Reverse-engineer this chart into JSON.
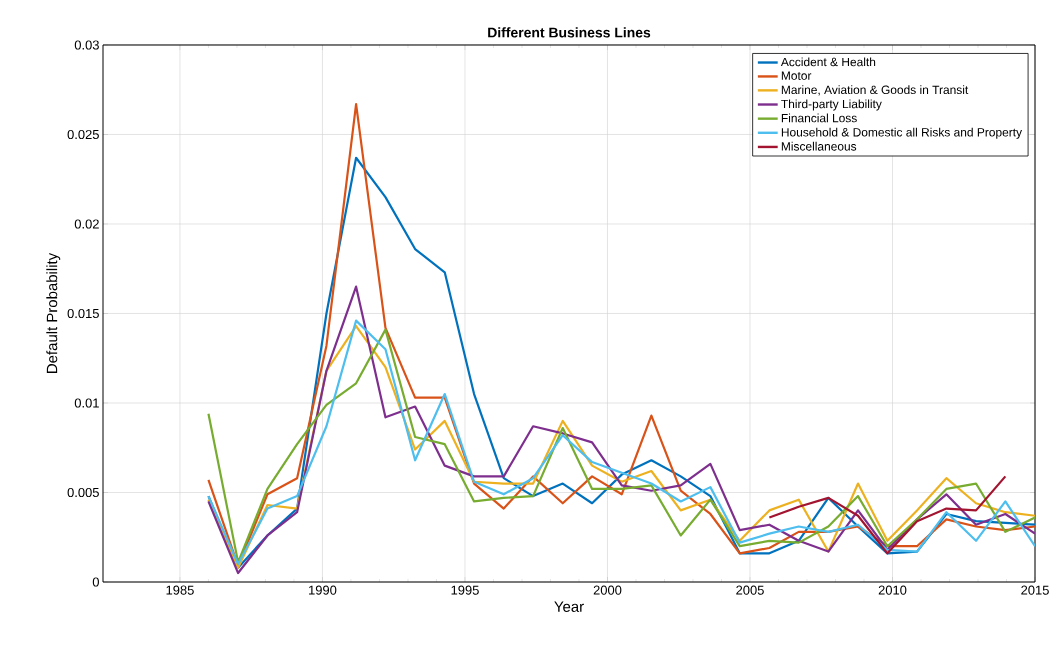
{
  "chart_data": {
    "type": "line",
    "title": "Different Business Lines",
    "xlabel": "Year",
    "ylabel": "Default Probability",
    "x": [
      1986,
      1987.04,
      1988.07,
      1989.11,
      1990.14,
      1991.18,
      1992.21,
      1993.25,
      1994.29,
      1995.32,
      1996.36,
      1997.39,
      1998.43,
      1999.46,
      2000.5,
      2001.54,
      2002.57,
      2003.61,
      2004.64,
      2005.68,
      2006.71,
      2007.75,
      2008.79,
      2009.82,
      2010.86,
      2011.89,
      2012.93,
      2013.96,
      2015
    ],
    "series": [
      {
        "name": "Accident & Health",
        "color": "#0072bd",
        "values": [
          0.0048,
          0.0008,
          0.0026,
          0.0041,
          0.015,
          0.0237,
          0.0215,
          0.0186,
          0.0173,
          0.0105,
          0.0058,
          0.0048,
          0.0055,
          0.0044,
          0.006,
          0.0068,
          0.0059,
          0.0048,
          0.0016,
          0.0016,
          0.0023,
          0.0047,
          0.0031,
          0.0016,
          0.0017,
          0.0038,
          0.0034,
          0.0033,
          0.0032
        ]
      },
      {
        "name": "Motor",
        "color": "#d95319",
        "values": [
          0.0057,
          0.0009,
          0.0049,
          0.0058,
          0.0132,
          0.0267,
          0.0142,
          0.0103,
          0.0103,
          0.0055,
          0.0041,
          0.0059,
          0.0044,
          0.0059,
          0.0049,
          0.0093,
          0.0051,
          0.0038,
          0.0016,
          0.0019,
          0.0028,
          0.0028,
          0.0031,
          0.002,
          0.002,
          0.0035,
          0.0031,
          0.0029,
          0.0031
        ]
      },
      {
        "name": "Marine, Aviation & Goods in Transit",
        "color": "#edb120",
        "values": [
          0.0046,
          0.0008,
          0.0043,
          0.0041,
          0.0118,
          0.0143,
          0.012,
          0.0074,
          0.009,
          0.0056,
          0.0055,
          0.0055,
          0.009,
          0.0065,
          0.0056,
          0.0062,
          0.004,
          0.0046,
          0.0023,
          0.004,
          0.0046,
          0.0017,
          0.0055,
          0.0023,
          0.004,
          0.0058,
          0.0044,
          0.0039,
          0.0037
        ]
      },
      {
        "name": "Third-party Liability",
        "color": "#7e2f8e",
        "values": [
          0.0045,
          0.0005,
          0.0026,
          0.0039,
          0.0118,
          0.0165,
          0.0092,
          0.0098,
          0.0065,
          0.0059,
          0.0059,
          0.0087,
          0.0083,
          0.0078,
          0.0054,
          0.0051,
          0.0054,
          0.0066,
          0.0029,
          0.0032,
          0.0023,
          0.0017,
          0.004,
          0.0018,
          0.0035,
          0.0049,
          0.0032,
          0.0038,
          0.0027
        ]
      },
      {
        "name": "Financial Loss",
        "color": "#77ac30",
        "values": [
          0.0094,
          0.0011,
          0.0052,
          0.0077,
          0.0099,
          0.0111,
          0.0141,
          0.0081,
          0.0077,
          0.0045,
          0.0047,
          0.0048,
          0.0086,
          0.0052,
          0.0052,
          0.0054,
          0.0026,
          0.0046,
          0.002,
          0.0023,
          0.0022,
          0.0031,
          0.0048,
          0.002,
          0.0035,
          0.0052,
          0.0055,
          0.0028,
          0.0036
        ]
      },
      {
        "name": "Household & Domestic all Risks and Property",
        "color": "#4dbeee",
        "values": [
          0.0048,
          0.001,
          0.0041,
          0.0048,
          0.0087,
          0.0146,
          0.013,
          0.0068,
          0.0105,
          0.0056,
          0.0049,
          0.0058,
          0.0082,
          0.0067,
          0.0061,
          0.0055,
          0.0045,
          0.0053,
          0.0022,
          0.0027,
          0.0031,
          0.0028,
          0.0032,
          0.0018,
          0.0017,
          0.0039,
          0.0023,
          0.0045,
          0.002
        ]
      },
      {
        "name": "Miscellaneous",
        "color": "#a2142f",
        "x": [
          2005.68,
          2006.71,
          2007.75,
          2008.79,
          2009.82,
          2010.86,
          2011.89,
          2012.93,
          2013.96
        ],
        "values": [
          0.0036,
          0.0042,
          0.0047,
          0.0037,
          0.0016,
          0.0034,
          0.0041,
          0.004,
          0.0059
        ]
      }
    ],
    "xlim": [
      1982.3,
      2015
    ],
    "xticks": [
      1985,
      1990,
      1995,
      2000,
      2005,
      2010,
      2015
    ],
    "ylim": [
      0,
      0.03
    ],
    "yticks": [
      0,
      0.005,
      0.01,
      0.015,
      0.02,
      0.025,
      0.03
    ],
    "grid": true,
    "legend": "top right"
  }
}
